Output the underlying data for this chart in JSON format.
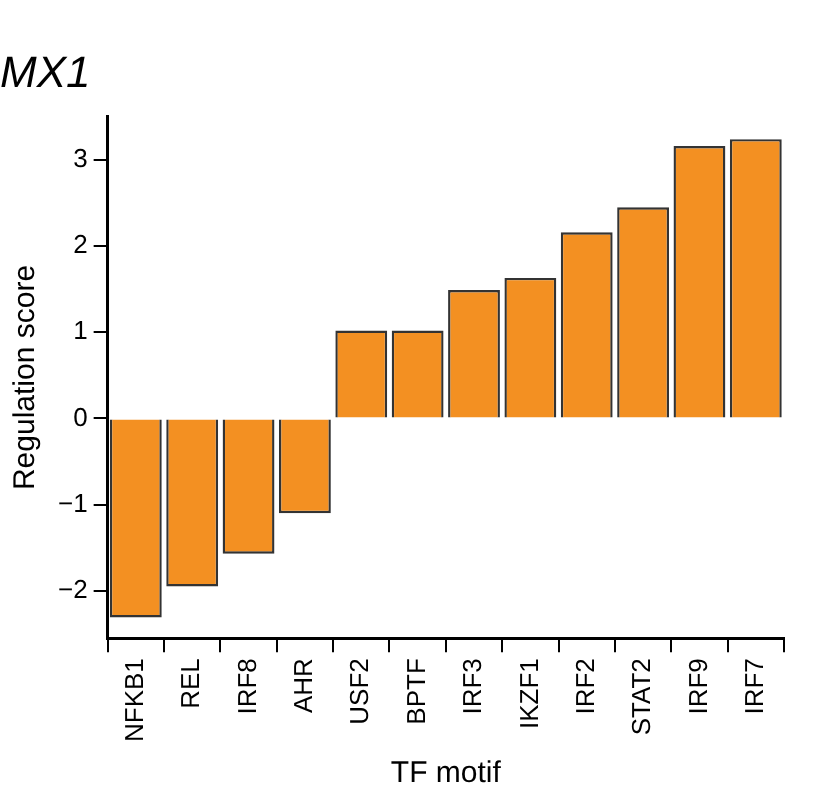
{
  "chart_data": {
    "type": "bar",
    "title": "MX1",
    "xlabel": "TF motif",
    "ylabel": "Regulation score",
    "categories": [
      "NFKB1",
      "REL",
      "IRF8",
      "AHR",
      "USF2",
      "BPTF",
      "IRF3",
      "IKZF1",
      "IRF2",
      "STAT2",
      "IRF9",
      "IRF7"
    ],
    "values": [
      -2.31,
      -1.95,
      -1.57,
      -1.1,
      1.02,
      1.02,
      1.49,
      1.63,
      2.16,
      2.45,
      3.16,
      3.24
    ],
    "color": "#f39022",
    "ylim": [
      -2.55,
      3.5
    ],
    "yticks": [
      -2,
      -1,
      0,
      1,
      2,
      3
    ],
    "grid": false,
    "legend": false
  }
}
